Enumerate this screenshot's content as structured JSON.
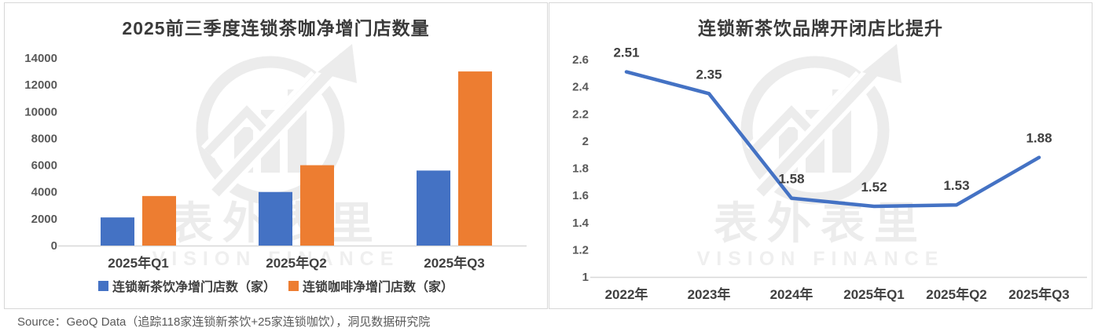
{
  "watermark": {
    "cn": "表外表里",
    "en": "VISION FINANCE"
  },
  "source": {
    "text": "Source：GeoQ Data（追踪118家连锁新茶饮+25家连锁咖饮），洞见数据研究院"
  },
  "colors": {
    "series_blue": "#4472C4",
    "series_orange": "#ED7D31",
    "axis_text": "#595959",
    "label_text": "#3F3F3F",
    "axis_line": "#D8D8D8",
    "panel_border": "#D7D7D7",
    "watermark_gray": "#ECECEC"
  },
  "chart_data": [
    {
      "type": "bar",
      "title": "2025前三季度连锁茶咖净增门店数量",
      "categories": [
        "2025年Q1",
        "2025年Q2",
        "2025年Q3"
      ],
      "series": [
        {
          "name": "连锁新茶饮净增门店数（家）",
          "color": "#4472C4",
          "values": [
            2100,
            4000,
            5600
          ]
        },
        {
          "name": "连锁咖啡净增门店数（家）",
          "color": "#ED7D31",
          "values": [
            3700,
            6000,
            13000
          ]
        }
      ],
      "ylim": [
        0,
        14000
      ],
      "ytick_step": 2000,
      "yticks": [
        "0",
        "2000",
        "4000",
        "6000",
        "8000",
        "10000",
        "12000",
        "14000"
      ],
      "grid": false,
      "legend_position": "bottom",
      "xlabel": "",
      "ylabel": ""
    },
    {
      "type": "line",
      "title": "连锁新茶饮品牌开闭店比提升",
      "categories": [
        "2022年",
        "2023年",
        "2024年",
        "2025年Q1",
        "2025年Q2",
        "2025年Q3"
      ],
      "series": [
        {
          "name": "开闭店比",
          "color": "#4472C4",
          "values": [
            2.51,
            2.35,
            1.58,
            1.52,
            1.53,
            1.88
          ],
          "labels": [
            "2.51",
            "2.35",
            "1.58",
            "1.52",
            "1.53",
            "1.88"
          ]
        }
      ],
      "ylim": [
        1,
        2.6
      ],
      "ytick_step": 0.2,
      "yticks": [
        "1",
        "1.2",
        "1.4",
        "1.6",
        "1.8",
        "2",
        "2.2",
        "2.4",
        "2.6"
      ],
      "grid": false,
      "legend_position": "none",
      "xlabel": "",
      "ylabel": ""
    }
  ]
}
